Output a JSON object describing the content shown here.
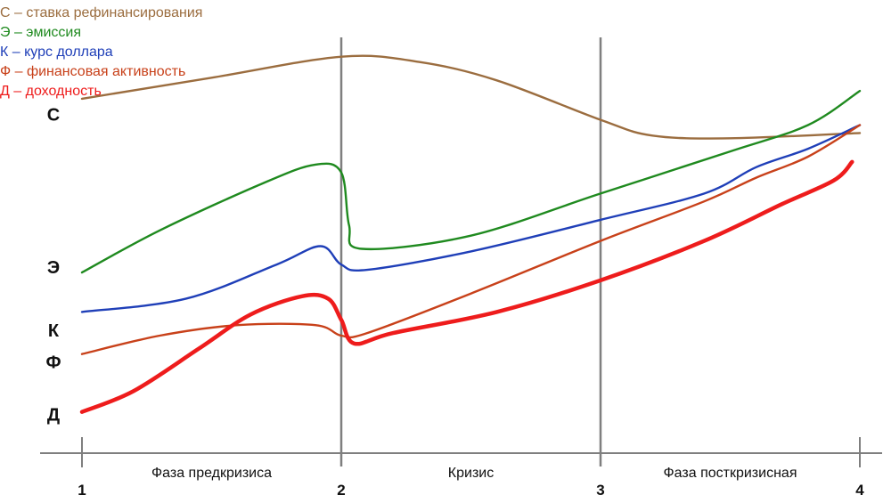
{
  "chart_data": {
    "type": "line",
    "x_ticks": [
      "1",
      "2",
      "3",
      "4"
    ],
    "phases": [
      "Фаза предкризиса",
      "Кризис",
      "Фаза посткризисная"
    ],
    "legend": [
      {
        "text": "С – ставка рефинансирования",
        "color": "#9b6d3f"
      },
      {
        "text": "Э – эмиссия",
        "color": "#1f8a1f"
      },
      {
        "text": "К – курс доллара",
        "color": "#1f3fb8"
      },
      {
        "text": "Ф – финансовая активность",
        "color": "#c8411a"
      },
      {
        "text": "Д – доходность",
        "color": "#ee1c1c"
      }
    ],
    "series": [
      {
        "name": "С",
        "color": "#9b6d3f",
        "width": 2.4,
        "points": [
          [
            0,
            36
          ],
          [
            0.5,
            44
          ],
          [
            1,
            52
          ],
          [
            1.3,
            50
          ],
          [
            1.6,
            43
          ],
          [
            2,
            28
          ],
          [
            2.2,
            22
          ],
          [
            2.5,
            21
          ],
          [
            3,
            23
          ]
        ]
      },
      {
        "name": "Э",
        "color": "#1f8a1f",
        "width": 2.4,
        "points": [
          [
            0,
            -30
          ],
          [
            0.3,
            -14
          ],
          [
            0.7,
            4
          ],
          [
            0.9,
            11
          ],
          [
            1,
            8
          ],
          [
            1.03,
            -12
          ],
          [
            1.08,
            -21
          ],
          [
            1.5,
            -16
          ],
          [
            2,
            0
          ],
          [
            2.5,
            16
          ],
          [
            2.8,
            26
          ],
          [
            3,
            39
          ]
        ]
      },
      {
        "name": "К",
        "color": "#1f3fb8",
        "width": 2.4,
        "points": [
          [
            0,
            -45
          ],
          [
            0.4,
            -40
          ],
          [
            0.75,
            -27
          ],
          [
            0.92,
            -20
          ],
          [
            1,
            -27
          ],
          [
            1.1,
            -29
          ],
          [
            1.5,
            -22
          ],
          [
            2,
            -10
          ],
          [
            2.4,
            0
          ],
          [
            2.6,
            10
          ],
          [
            2.8,
            17
          ],
          [
            3,
            26
          ]
        ]
      },
      {
        "name": "Ф",
        "color": "#c8411a",
        "width": 2.4,
        "points": [
          [
            0,
            -61
          ],
          [
            0.3,
            -54
          ],
          [
            0.6,
            -50
          ],
          [
            0.9,
            -50
          ],
          [
            1,
            -54
          ],
          [
            1.1,
            -53
          ],
          [
            1.5,
            -38
          ],
          [
            2,
            -18
          ],
          [
            2.4,
            -3
          ],
          [
            2.6,
            6
          ],
          [
            2.8,
            14
          ],
          [
            3,
            26
          ]
        ]
      },
      {
        "name": "Д",
        "color": "#ee1c1c",
        "width": 4.5,
        "points": [
          [
            0,
            -83
          ],
          [
            0.2,
            -75
          ],
          [
            0.45,
            -59
          ],
          [
            0.65,
            -46
          ],
          [
            0.85,
            -39
          ],
          [
            0.95,
            -40
          ],
          [
            1,
            -48
          ],
          [
            1.05,
            -57
          ],
          [
            1.2,
            -53
          ],
          [
            1.6,
            -45
          ],
          [
            2,
            -33
          ],
          [
            2.4,
            -18
          ],
          [
            2.7,
            -4
          ],
          [
            2.9,
            5
          ],
          [
            2.97,
            12
          ]
        ]
      }
    ],
    "curve_labels": [
      "С",
      "Э",
      "К",
      "Ф",
      "Д"
    ],
    "curve_label_values": [
      30,
      -28,
      -52,
      -64,
      -84
    ],
    "xlim": [
      0,
      3
    ],
    "ylim": [
      -100,
      60
    ],
    "grid": false
  }
}
